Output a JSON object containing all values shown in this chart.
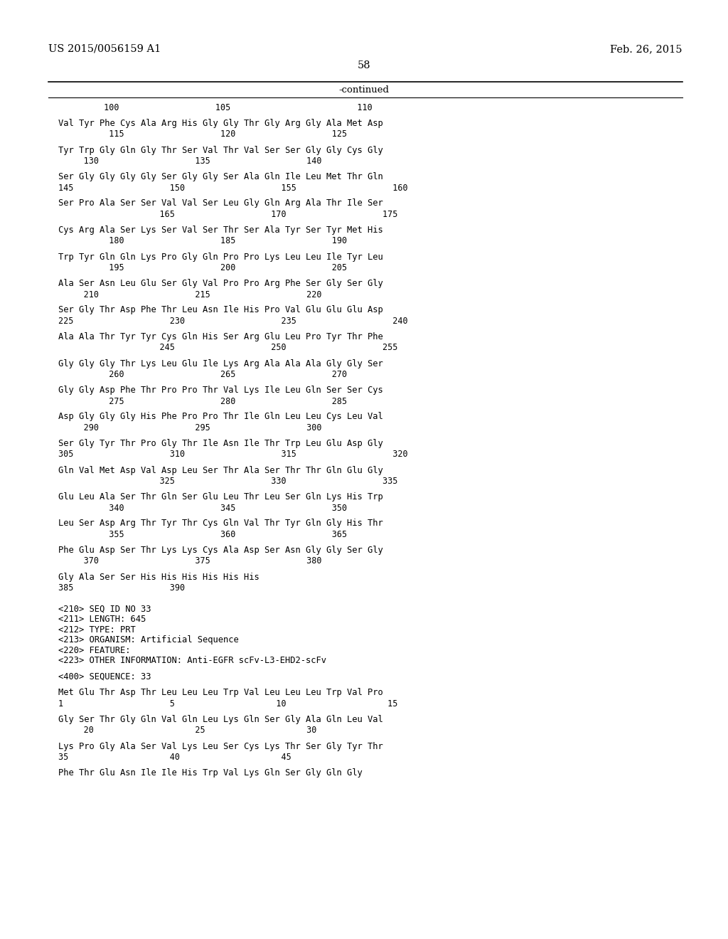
{
  "patent_left": "US 2015/0056159 A1",
  "patent_right": "Feb. 26, 2015",
  "page_number": "58",
  "continued": "-continued",
  "background_color": "#ffffff",
  "text_color": "#000000",
  "content_lines": [
    {
      "type": "numbers",
      "text": "         100                   105                         110"
    },
    {
      "type": "blank"
    },
    {
      "type": "sequence",
      "text": "Val Tyr Phe Cys Ala Arg His Gly Gly Thr Gly Arg Gly Ala Met Asp"
    },
    {
      "type": "numbers",
      "text": "          115                   120                   125"
    },
    {
      "type": "blank"
    },
    {
      "type": "sequence",
      "text": "Tyr Trp Gly Gln Gly Thr Ser Val Thr Val Ser Ser Gly Gly Cys Gly"
    },
    {
      "type": "numbers",
      "text": "     130                   135                   140"
    },
    {
      "type": "blank"
    },
    {
      "type": "sequence",
      "text": "Ser Gly Gly Gly Gly Ser Gly Gly Ser Ala Gln Ile Leu Met Thr Gln"
    },
    {
      "type": "numbers",
      "text": "145                   150                   155                   160"
    },
    {
      "type": "blank"
    },
    {
      "type": "sequence",
      "text": "Ser Pro Ala Ser Ser Val Val Ser Leu Gly Gln Arg Ala Thr Ile Ser"
    },
    {
      "type": "numbers",
      "text": "                    165                   170                   175"
    },
    {
      "type": "blank"
    },
    {
      "type": "sequence",
      "text": "Cys Arg Ala Ser Lys Ser Val Ser Thr Ser Ala Tyr Ser Tyr Met His"
    },
    {
      "type": "numbers",
      "text": "          180                   185                   190"
    },
    {
      "type": "blank"
    },
    {
      "type": "sequence",
      "text": "Trp Tyr Gln Gln Lys Pro Gly Gln Pro Pro Lys Leu Leu Ile Tyr Leu"
    },
    {
      "type": "numbers",
      "text": "          195                   200                   205"
    },
    {
      "type": "blank"
    },
    {
      "type": "sequence",
      "text": "Ala Ser Asn Leu Glu Ser Gly Val Pro Pro Arg Phe Ser Gly Ser Gly"
    },
    {
      "type": "numbers",
      "text": "     210                   215                   220"
    },
    {
      "type": "blank"
    },
    {
      "type": "sequence",
      "text": "Ser Gly Thr Asp Phe Thr Leu Asn Ile His Pro Val Glu Glu Glu Asp"
    },
    {
      "type": "numbers",
      "text": "225                   230                   235                   240"
    },
    {
      "type": "blank"
    },
    {
      "type": "sequence",
      "text": "Ala Ala Thr Tyr Tyr Cys Gln His Ser Arg Glu Leu Pro Tyr Thr Phe"
    },
    {
      "type": "numbers",
      "text": "                    245                   250                   255"
    },
    {
      "type": "blank"
    },
    {
      "type": "sequence",
      "text": "Gly Gly Gly Thr Lys Leu Glu Ile Lys Arg Ala Ala Ala Gly Gly Ser"
    },
    {
      "type": "numbers",
      "text": "          260                   265                   270"
    },
    {
      "type": "blank"
    },
    {
      "type": "sequence",
      "text": "Gly Gly Asp Phe Thr Pro Pro Thr Val Lys Ile Leu Gln Ser Ser Cys"
    },
    {
      "type": "numbers",
      "text": "          275                   280                   285"
    },
    {
      "type": "blank"
    },
    {
      "type": "sequence",
      "text": "Asp Gly Gly Gly His Phe Pro Pro Thr Ile Gln Leu Leu Cys Leu Val"
    },
    {
      "type": "numbers",
      "text": "     290                   295                   300"
    },
    {
      "type": "blank"
    },
    {
      "type": "sequence",
      "text": "Ser Gly Tyr Thr Pro Gly Thr Ile Asn Ile Thr Trp Leu Glu Asp Gly"
    },
    {
      "type": "numbers",
      "text": "305                   310                   315                   320"
    },
    {
      "type": "blank"
    },
    {
      "type": "sequence",
      "text": "Gln Val Met Asp Val Asp Leu Ser Thr Ala Ser Thr Thr Gln Glu Gly"
    },
    {
      "type": "numbers",
      "text": "                    325                   330                   335"
    },
    {
      "type": "blank"
    },
    {
      "type": "sequence",
      "text": "Glu Leu Ala Ser Thr Gln Ser Glu Leu Thr Leu Ser Gln Lys His Trp"
    },
    {
      "type": "numbers",
      "text": "          340                   345                   350"
    },
    {
      "type": "blank"
    },
    {
      "type": "sequence",
      "text": "Leu Ser Asp Arg Thr Tyr Thr Cys Gln Val Thr Tyr Gln Gly His Thr"
    },
    {
      "type": "numbers",
      "text": "          355                   360                   365"
    },
    {
      "type": "blank"
    },
    {
      "type": "sequence",
      "text": "Phe Glu Asp Ser Thr Lys Lys Cys Ala Asp Ser Asn Gly Gly Ser Gly"
    },
    {
      "type": "numbers",
      "text": "     370                   375                   380"
    },
    {
      "type": "blank"
    },
    {
      "type": "sequence",
      "text": "Gly Ala Ser Ser His His His His His His"
    },
    {
      "type": "numbers",
      "text": "385                   390"
    },
    {
      "type": "blank"
    },
    {
      "type": "blank"
    },
    {
      "type": "meta",
      "text": "<210> SEQ ID NO 33"
    },
    {
      "type": "meta",
      "text": "<211> LENGTH: 645"
    },
    {
      "type": "meta",
      "text": "<212> TYPE: PRT"
    },
    {
      "type": "meta",
      "text": "<213> ORGANISM: Artificial Sequence"
    },
    {
      "type": "meta",
      "text": "<220> FEATURE:"
    },
    {
      "type": "meta",
      "text": "<223> OTHER INFORMATION: Anti-EGFR scFv-L3-EHD2-scFv"
    },
    {
      "type": "blank"
    },
    {
      "type": "meta",
      "text": "<400> SEQUENCE: 33"
    },
    {
      "type": "blank"
    },
    {
      "type": "sequence",
      "text": "Met Glu Thr Asp Thr Leu Leu Leu Trp Val Leu Leu Leu Trp Val Pro"
    },
    {
      "type": "numbers",
      "text": "1                     5                    10                    15"
    },
    {
      "type": "blank"
    },
    {
      "type": "sequence",
      "text": "Gly Ser Thr Gly Gln Val Gln Leu Lys Gln Ser Gly Ala Gln Leu Val"
    },
    {
      "type": "numbers",
      "text": "     20                    25                    30"
    },
    {
      "type": "blank"
    },
    {
      "type": "sequence",
      "text": "Lys Pro Gly Ala Ser Val Lys Leu Ser Cys Lys Thr Ser Gly Tyr Thr"
    },
    {
      "type": "numbers",
      "text": "35                    40                    45"
    },
    {
      "type": "blank"
    },
    {
      "type": "sequence",
      "text": "Phe Thr Glu Asn Ile Ile His Trp Val Lys Gln Ser Gly Gln Gly"
    }
  ]
}
